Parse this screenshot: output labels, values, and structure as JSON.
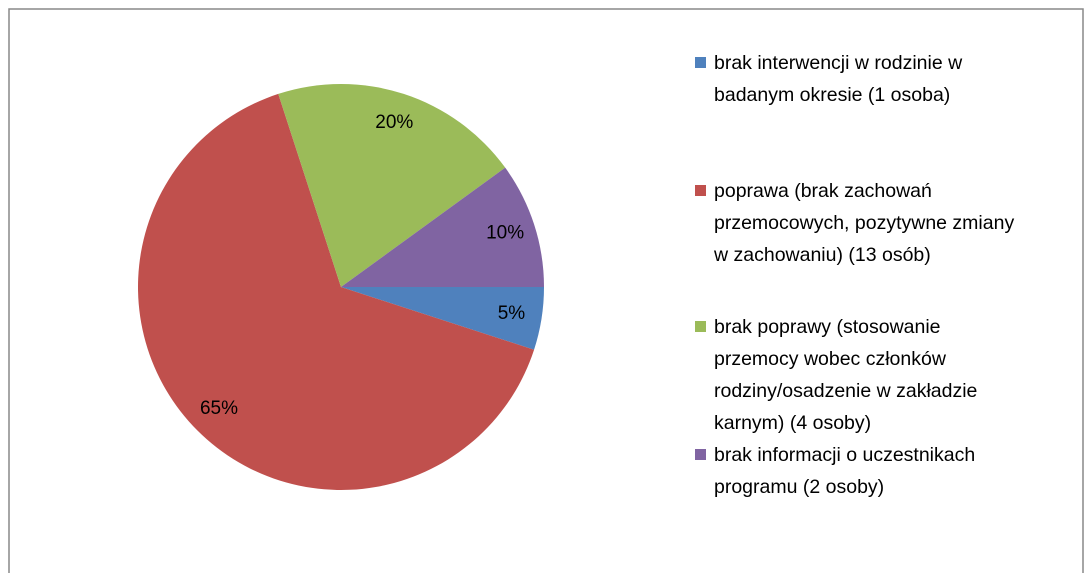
{
  "chart_data": {
    "type": "pie",
    "categories": [
      "brak interwencji w rodzinie w badanym okresie (1 osoba)",
      "poprawa (brak zachowań przemocowych, pozytywne zmiany w zachowaniu) (13 osób)",
      "brak poprawy (stosowanie przemocy wobec członków rodziny/osadzenie w zakładzie karnym) (4 osoby)",
      "brak informacji o uczestnikach programu (2 osoby)"
    ],
    "values": [
      5,
      65,
      20,
      10
    ],
    "value_labels": [
      "5%",
      "65%",
      "20%",
      "10%"
    ],
    "colors": [
      "#4f81bd",
      "#c0504d",
      "#9bbb59",
      "#8064a2"
    ],
    "legend": "right"
  }
}
